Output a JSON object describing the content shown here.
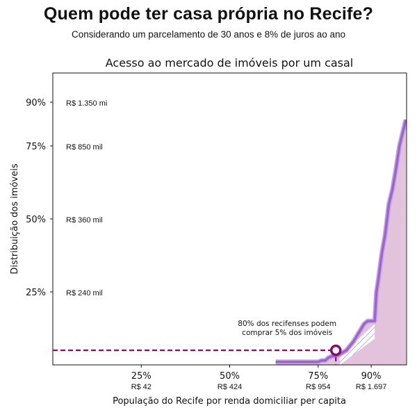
{
  "header": {
    "title": "Quem pode ter casa própria no Recife?",
    "subtitle": "Considerando um parcelamento de 30 anos e 8% de juros ao ano"
  },
  "chart_data": {
    "type": "area",
    "title": "Acesso ao mercado de imóveis por um casal",
    "xlabel": "População do Recife por renda domiciliar per capita",
    "ylabel": "Distribuição dos imóveis",
    "xlim": [
      0,
      100
    ],
    "ylim": [
      0,
      100
    ],
    "x_ticks": [
      {
        "value": 25,
        "label": "25%",
        "sublabel": "R$ 42"
      },
      {
        "value": 50,
        "label": "50%",
        "sublabel": "R$ 424"
      },
      {
        "value": 75,
        "label": "75%",
        "sublabel": "R$ 954"
      },
      {
        "value": 90,
        "label": "90%",
        "sublabel": "R$ 1.697"
      }
    ],
    "y_ticks": [
      {
        "value": 25,
        "label": "25%",
        "sublabel": "R$ 240 mil"
      },
      {
        "value": 50,
        "label": "50%",
        "sublabel": "R$ 360 mil"
      },
      {
        "value": 75,
        "label": "75%",
        "sublabel": "R$ 850 mil"
      },
      {
        "value": 90,
        "label": "90%",
        "sublabel": "R$ 1.350 mi"
      }
    ],
    "series": [
      {
        "x": [
          63,
          68,
          72,
          74,
          75,
          76,
          77,
          78,
          79,
          80,
          81,
          83,
          85,
          86,
          87,
          88,
          89,
          90,
          91,
          91.5,
          92,
          93,
          94,
          95,
          96,
          97,
          98,
          99,
          99.8
        ],
        "y": [
          1,
          1,
          1,
          1,
          1,
          1.5,
          1.5,
          2.5,
          3,
          3,
          3.5,
          5,
          8,
          10,
          12,
          14,
          15,
          15,
          15,
          25,
          29,
          38,
          45,
          55,
          60,
          67,
          75,
          80,
          84
        ]
      }
    ],
    "annotation": {
      "text_lines": [
        "80% dos recifenses podem",
        "comprar 5% dos imóveis"
      ],
      "x": 80,
      "y": 5
    },
    "grid": false,
    "colors": {
      "line": "#9a66c8",
      "fill": "#e3c2dc",
      "marker": "#8b0a72",
      "hatch": "#8080c0"
    }
  }
}
